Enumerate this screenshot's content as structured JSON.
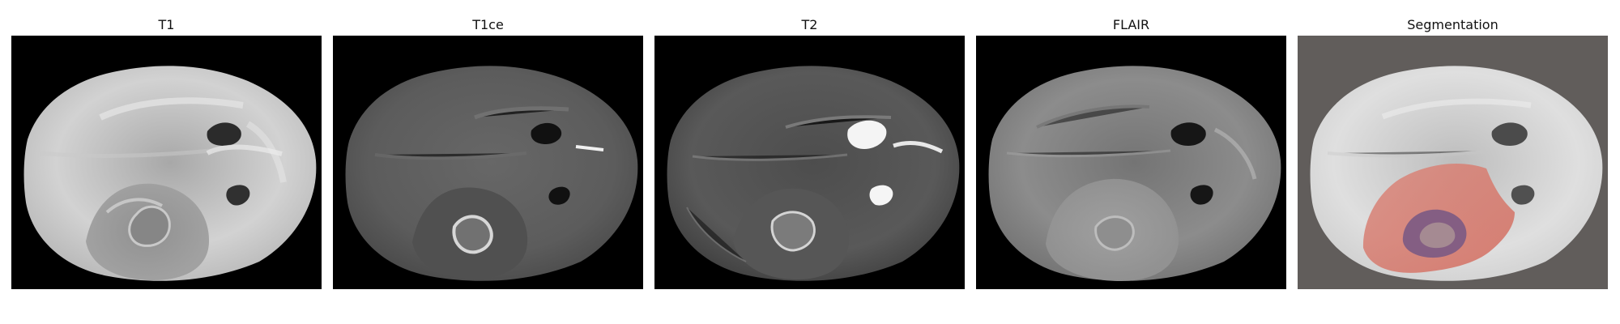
{
  "figure": {
    "panels": [
      {
        "id": "t1",
        "title": "T1"
      },
      {
        "id": "t1ce",
        "title": "T1ce"
      },
      {
        "id": "t2",
        "title": "T2"
      },
      {
        "id": "flair",
        "title": "FLAIR"
      },
      {
        "id": "segmentation",
        "title": "Segmentation"
      }
    ]
  },
  "colors": {
    "background": "#000000",
    "segmentation_background": "#615d5b",
    "tumor_edema": "#d97a6c",
    "tumor_core": "#7a5a83",
    "enhancing_rim": "#a58a92"
  }
}
